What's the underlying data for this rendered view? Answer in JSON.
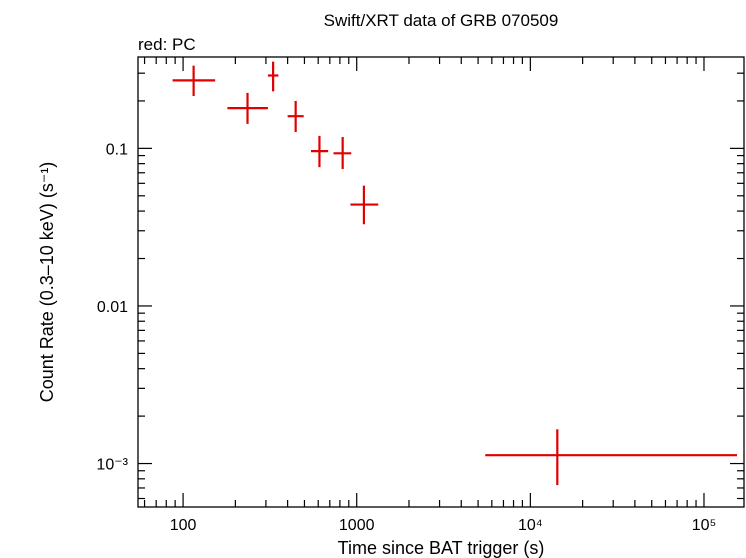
{
  "chart_data": {
    "type": "scatter",
    "title": "Swift/XRT data of GRB 070509",
    "subtitle": "red: PC",
    "xlabel": "Time since BAT trigger (s)",
    "ylabel": "Count Rate (0.3–10 keV) (s⁻¹)",
    "xscale": "log",
    "yscale": "log",
    "xlim": [
      55,
      170000
    ],
    "ylim": [
      0.00053,
      0.38
    ],
    "x_ticks": [
      {
        "value": 100,
        "label": "100"
      },
      {
        "value": 1000,
        "label": "1000"
      },
      {
        "value": 10000,
        "label": "10⁴"
      },
      {
        "value": 100000,
        "label": "10⁵"
      }
    ],
    "y_ticks": [
      {
        "value": 0.1,
        "label": "0.1"
      },
      {
        "value": 0.01,
        "label": "0.01"
      },
      {
        "value": 0.001,
        "label": "10⁻³"
      }
    ],
    "grid": false,
    "series": [
      {
        "color": "#e00000",
        "points": [
          {
            "x": 115,
            "xlo": 87,
            "xhi": 153,
            "y": 0.27,
            "ylo": 0.215,
            "yhi": 0.335
          },
          {
            "x": 235,
            "xlo": 180,
            "xhi": 308,
            "y": 0.18,
            "ylo": 0.143,
            "yhi": 0.225
          },
          {
            "x": 330,
            "xlo": 308,
            "xhi": 354,
            "y": 0.29,
            "ylo": 0.23,
            "yhi": 0.355
          },
          {
            "x": 445,
            "xlo": 400,
            "xhi": 495,
            "y": 0.16,
            "ylo": 0.127,
            "yhi": 0.2
          },
          {
            "x": 610,
            "xlo": 545,
            "xhi": 685,
            "y": 0.096,
            "ylo": 0.076,
            "yhi": 0.12
          },
          {
            "x": 830,
            "xlo": 735,
            "xhi": 930,
            "y": 0.093,
            "ylo": 0.074,
            "yhi": 0.118
          },
          {
            "x": 1100,
            "xlo": 920,
            "xhi": 1330,
            "y": 0.044,
            "ylo": 0.033,
            "yhi": 0.058
          },
          {
            "x": 14300,
            "xlo": 5500,
            "xhi": 155000,
            "y": 0.00113,
            "ylo": 0.00073,
            "yhi": 0.00165
          }
        ]
      }
    ]
  }
}
